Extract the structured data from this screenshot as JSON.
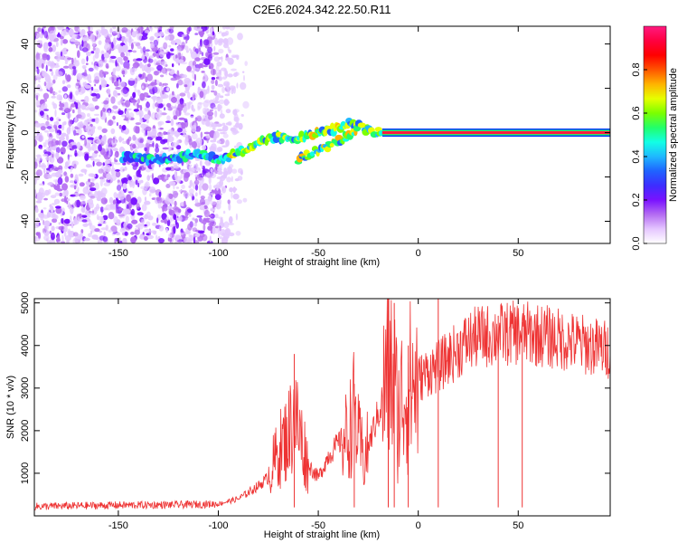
{
  "title": "C2E6.2024.342.22.50.R11",
  "chart_data": [
    {
      "type": "heatmap",
      "xlabel": "Height of straight line (km)",
      "ylabel": "Frequency (Hz)",
      "xlim": [
        -192,
        96
      ],
      "ylim": [
        -50,
        48
      ],
      "xticks": [
        -150,
        -100,
        -50,
        0,
        50
      ],
      "yticks": [
        -40,
        -20,
        0,
        20,
        40
      ],
      "track": {
        "x": [
          -145,
          -135,
          -125,
          -115,
          -105,
          -100,
          -95,
          -90,
          -85,
          -80,
          -75,
          -70,
          -65,
          -60,
          -55,
          -50,
          -45,
          -40,
          -35,
          -30,
          -25,
          -22,
          -18
        ],
        "y": [
          -11,
          -12,
          -12,
          -10,
          -10,
          -13,
          -11,
          -9,
          -7,
          -5,
          -3,
          -2,
          -3,
          -2,
          -1,
          0,
          1,
          2,
          4,
          3,
          1,
          0,
          0
        ]
      },
      "track2": {
        "x": [
          -60,
          -55,
          -50,
          -45,
          -40,
          -35,
          -30
        ],
        "y": [
          -12,
          -10,
          -8,
          -6,
          -4,
          -1,
          2
        ]
      },
      "carrier": {
        "x_start": -18,
        "x_end": 96,
        "y": 0
      },
      "colorbar": {
        "label": "Normalized spectral amplitude",
        "ticks": [
          "0.0",
          "0.2",
          "0.4",
          "0.6",
          "0.8"
        ],
        "colors": [
          "#ffffff",
          "#e5c6ff",
          "#b46cf2",
          "#7a12ff",
          "#3d2dff",
          "#1f63ff",
          "#1fb8ff",
          "#12ffe5",
          "#22ff6a",
          "#7bff00",
          "#e6ff00",
          "#ffb300",
          "#ff5500",
          "#ff0000",
          "#ff0040",
          "#ff1a80"
        ]
      }
    },
    {
      "type": "line",
      "xlabel": "Height of straight line (km)",
      "ylabel": "SNR (10 * v/v)",
      "xlim": [
        -192,
        96
      ],
      "ylim": [
        0,
        5100
      ],
      "xticks": [
        -150,
        -100,
        -50,
        0,
        50
      ],
      "yticks": [
        1000,
        2000,
        3000,
        4000,
        5000
      ],
      "color": "#ee3333",
      "envelope": {
        "x": [
          -192,
          -150,
          -120,
          -100,
          -90,
          -80,
          -75,
          -70,
          -65,
          -62,
          -58,
          -55,
          -50,
          -45,
          -40,
          -35,
          -32,
          -30,
          -27,
          -22,
          -18,
          -15,
          -12,
          -10,
          -8,
          -5,
          0,
          5,
          10,
          15,
          20,
          25,
          30,
          40,
          50,
          60,
          70,
          80,
          90,
          96
        ],
        "y": [
          220,
          250,
          260,
          280,
          400,
          700,
          900,
          1500,
          1900,
          2400,
          1700,
          1200,
          900,
          1400,
          1700,
          1900,
          2500,
          1800,
          1300,
          2100,
          2700,
          3500,
          3100,
          2300,
          2800,
          3000,
          3200,
          3400,
          3500,
          3700,
          3900,
          4100,
          4200,
          4250,
          4300,
          4250,
          4150,
          4050,
          3950,
          3900
        ]
      },
      "spikes": [
        {
          "x": -62,
          "y": 3800
        },
        {
          "x": -32,
          "y": 3100
        },
        {
          "x": -15,
          "y": 4900
        },
        {
          "x": -12,
          "y": 5000
        },
        {
          "x": -5,
          "y": 4000
        },
        {
          "x": 10,
          "y": 5100
        },
        {
          "x": 40,
          "y": 4700
        },
        {
          "x": 52,
          "y": 4550
        }
      ]
    }
  ]
}
